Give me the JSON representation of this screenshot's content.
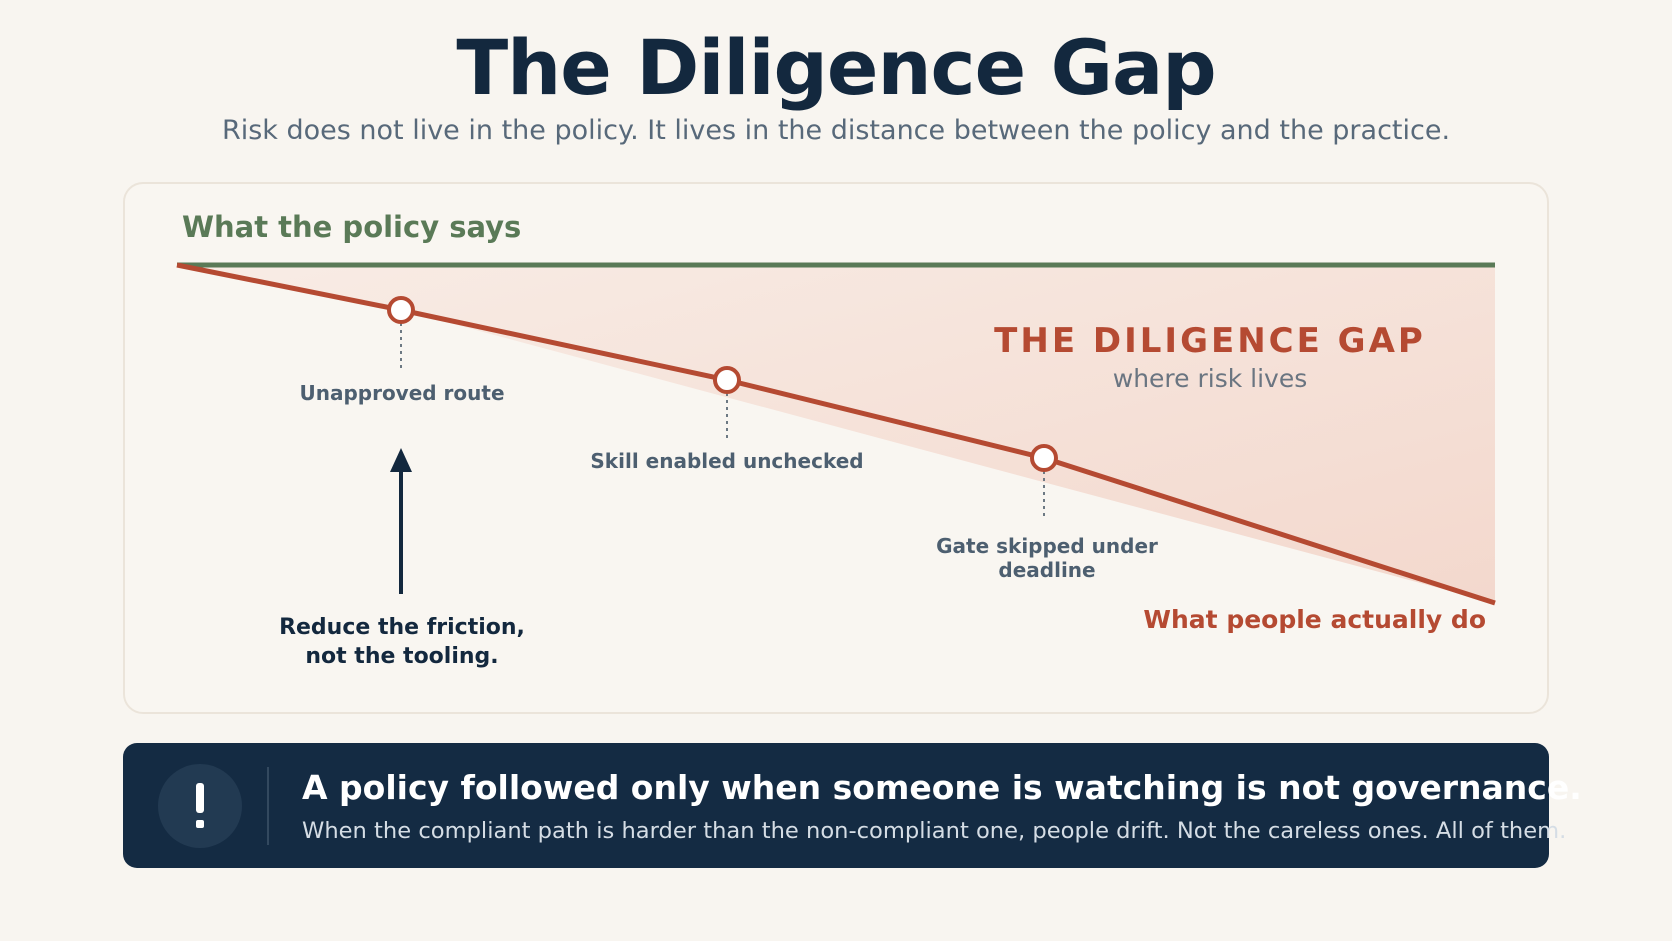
{
  "header": {
    "title": "The Diligence Gap",
    "subtitle": "Risk does not live in the policy. It lives in the distance between the policy and the practice."
  },
  "diagram": {
    "policy_label": "What the policy says",
    "practice_label": "What people actually do",
    "gap_title": "THE DILIGENCE GAP",
    "gap_subtitle": "where risk lives",
    "events": [
      {
        "label": "Unapproved route"
      },
      {
        "label": "Skill enabled unchecked"
      },
      {
        "label": "Gate skipped under deadline"
      }
    ],
    "annotation": {
      "line1": "Reduce the friction,",
      "line2": "not the tooling."
    },
    "colors": {
      "policy_line": "#5a7a57",
      "practice_line": "#b54a32",
      "gap_fill": "#f5e0d7",
      "arrow": "#13283e"
    }
  },
  "callout": {
    "icon": "exclamation-icon",
    "icon_glyph": "!",
    "heading": "A policy followed only when someone is watching is not governance.",
    "text": "When the compliant path is harder than the non-compliant one, people drift. Not the careless ones. All of them."
  }
}
